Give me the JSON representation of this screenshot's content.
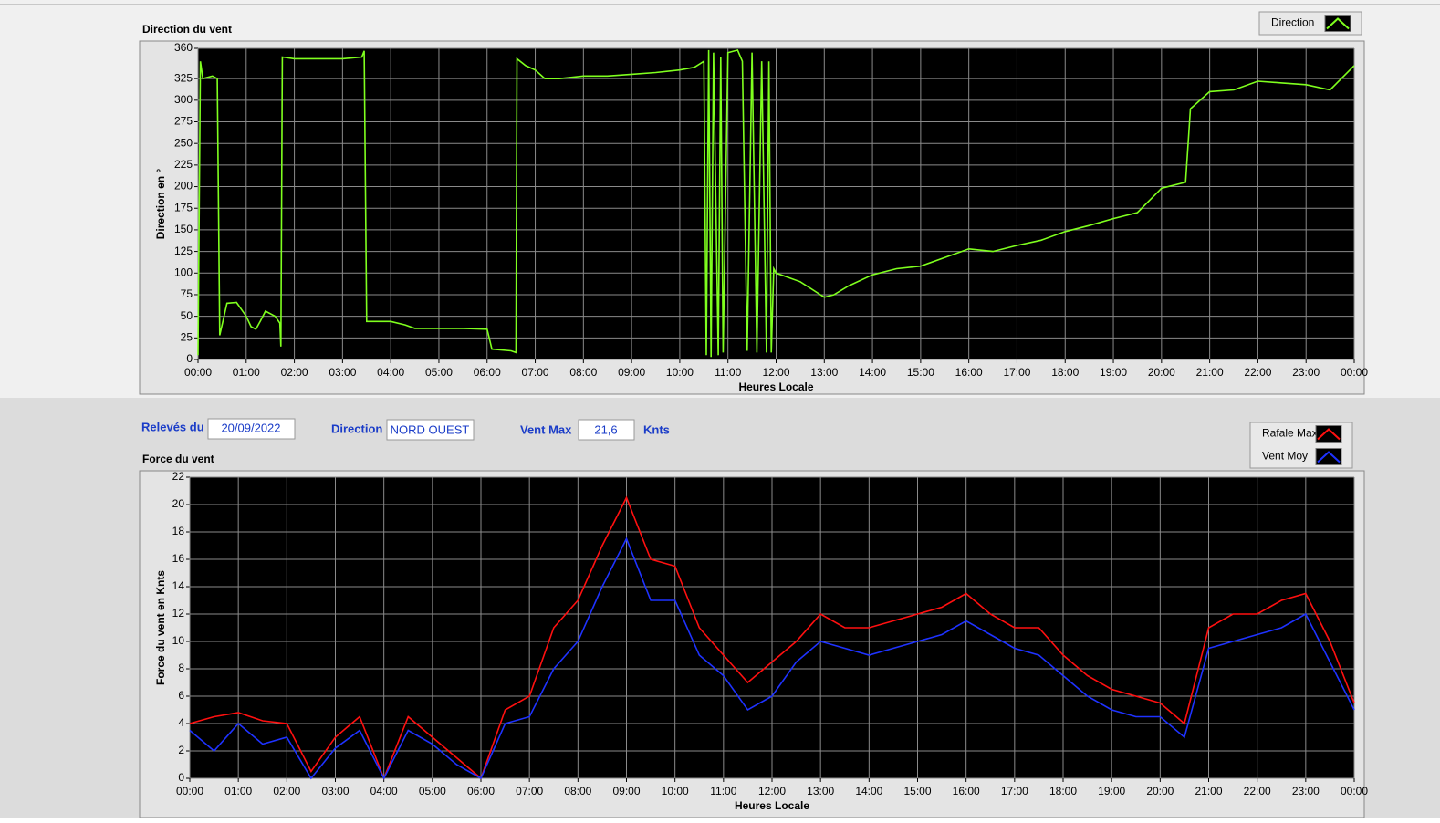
{
  "chart_data": [
    {
      "type": "line",
      "title": "Direction du vent",
      "ylabel": "Direction en °",
      "xlabel": "Heures Locale",
      "grid": true,
      "xlim": [
        0,
        24
      ],
      "ylim": [
        0,
        360
      ],
      "xticks": [
        {
          "value": 0,
          "label": "00:00"
        },
        {
          "value": 1,
          "label": "01:00"
        },
        {
          "value": 2,
          "label": "02:00"
        },
        {
          "value": 3,
          "label": "03:00"
        },
        {
          "value": 4,
          "label": "04:00"
        },
        {
          "value": 5,
          "label": "05:00"
        },
        {
          "value": 6,
          "label": "06:00"
        },
        {
          "value": 7,
          "label": "07:00"
        },
        {
          "value": 8,
          "label": "08:00"
        },
        {
          "value": 9,
          "label": "09:00"
        },
        {
          "value": 10,
          "label": "10:00"
        },
        {
          "value": 11,
          "label": "11:00"
        },
        {
          "value": 12,
          "label": "12:00"
        },
        {
          "value": 13,
          "label": "13:00"
        },
        {
          "value": 14,
          "label": "14:00"
        },
        {
          "value": 15,
          "label": "15:00"
        },
        {
          "value": 16,
          "label": "16:00"
        },
        {
          "value": 17,
          "label": "17:00"
        },
        {
          "value": 18,
          "label": "18:00"
        },
        {
          "value": 19,
          "label": "19:00"
        },
        {
          "value": 20,
          "label": "20:00"
        },
        {
          "value": 21,
          "label": "21:00"
        },
        {
          "value": 22,
          "label": "22:00"
        },
        {
          "value": 23,
          "label": "23:00"
        },
        {
          "value": 24,
          "label": "00:00"
        }
      ],
      "yticks": [
        0,
        25,
        50,
        75,
        100,
        125,
        150,
        175,
        200,
        225,
        250,
        275,
        300,
        325,
        360
      ],
      "x": [
        0,
        0.05,
        0.1,
        0.3,
        0.4,
        0.45,
        0.6,
        0.8,
        1.0,
        1.1,
        1.2,
        1.3,
        1.4,
        1.6,
        1.7,
        1.72,
        1.75,
        2.0,
        3.0,
        3.4,
        3.45,
        3.5,
        4.0,
        4.3,
        4.5,
        5.0,
        5.5,
        6.0,
        6.1,
        6.5,
        6.6,
        6.62,
        6.8,
        7.0,
        7.2,
        7.5,
        8.0,
        8.5,
        9.0,
        9.5,
        10.0,
        10.3,
        10.5,
        10.55,
        10.6,
        10.65,
        10.7,
        10.8,
        10.85,
        10.9,
        11.0,
        11.2,
        11.3,
        11.4,
        11.5,
        11.6,
        11.7,
        11.8,
        11.85,
        11.9,
        11.95,
        12.0,
        12.5,
        13.0,
        13.2,
        13.5,
        14.0,
        14.5,
        15.0,
        15.5,
        16.0,
        16.5,
        17.0,
        17.5,
        18.0,
        18.5,
        19.0,
        19.5,
        20.0,
        20.5,
        20.6,
        21.0,
        21.5,
        22.0,
        22.5,
        23.0,
        23.5,
        24.0
      ],
      "series": [
        {
          "name": "Direction",
          "color": "#7fff1e",
          "values": [
            5,
            345,
            325,
            328,
            325,
            28,
            65,
            66,
            50,
            38,
            35,
            45,
            56,
            50,
            42,
            15,
            350,
            348,
            348,
            350,
            357,
            44,
            44,
            40,
            36,
            36,
            36,
            35,
            12,
            10,
            8,
            348,
            340,
            335,
            325,
            325,
            328,
            328,
            330,
            332,
            335,
            338,
            345,
            5,
            358,
            3,
            355,
            5,
            350,
            8,
            355,
            358,
            345,
            10,
            355,
            8,
            345,
            8,
            345,
            8,
            105,
            100,
            90,
            72,
            75,
            85,
            98,
            105,
            108,
            118,
            128,
            125,
            132,
            138,
            148,
            155,
            163,
            170,
            198,
            205,
            290,
            310,
            312,
            322,
            320,
            318,
            312,
            340
          ]
        }
      ]
    },
    {
      "type": "line",
      "title": "Force du vent",
      "ylabel": "Force du vent en Knts",
      "xlabel": "Heures Locale",
      "grid": true,
      "xlim": [
        0,
        24
      ],
      "ylim": [
        0,
        22
      ],
      "xticks": [
        {
          "value": 0,
          "label": "00:00"
        },
        {
          "value": 1,
          "label": "01:00"
        },
        {
          "value": 2,
          "label": "02:00"
        },
        {
          "value": 3,
          "label": "03:00"
        },
        {
          "value": 4,
          "label": "04:00"
        },
        {
          "value": 5,
          "label": "05:00"
        },
        {
          "value": 6,
          "label": "06:00"
        },
        {
          "value": 7,
          "label": "07:00"
        },
        {
          "value": 8,
          "label": "08:00"
        },
        {
          "value": 9,
          "label": "09:00"
        },
        {
          "value": 10,
          "label": "10:00"
        },
        {
          "value": 11,
          "label": "11:00"
        },
        {
          "value": 12,
          "label": "12:00"
        },
        {
          "value": 13,
          "label": "13:00"
        },
        {
          "value": 14,
          "label": "14:00"
        },
        {
          "value": 15,
          "label": "15:00"
        },
        {
          "value": 16,
          "label": "16:00"
        },
        {
          "value": 17,
          "label": "17:00"
        },
        {
          "value": 18,
          "label": "18:00"
        },
        {
          "value": 19,
          "label": "19:00"
        },
        {
          "value": 20,
          "label": "20:00"
        },
        {
          "value": 21,
          "label": "21:00"
        },
        {
          "value": 22,
          "label": "22:00"
        },
        {
          "value": 23,
          "label": "23:00"
        },
        {
          "value": 24,
          "label": "00:00"
        }
      ],
      "yticks": [
        0,
        2,
        4,
        6,
        8,
        10,
        12,
        14,
        16,
        18,
        20,
        22
      ],
      "x": [
        0,
        0.5,
        1,
        1.5,
        2,
        2.5,
        3,
        3.5,
        4,
        4.5,
        5,
        5.5,
        6,
        6.5,
        7,
        7.5,
        8,
        8.5,
        9,
        9.5,
        10,
        10.5,
        11,
        11.5,
        12,
        12.5,
        13,
        13.5,
        14,
        14.5,
        15,
        15.5,
        16,
        16.5,
        17,
        17.5,
        18,
        18.5,
        19,
        19.5,
        20,
        20.5,
        21,
        21.5,
        22,
        22.5,
        23,
        23.5,
        24
      ],
      "series": [
        {
          "name": "Rafale Max",
          "color": "#ff1010",
          "values": [
            4,
            4.5,
            4.8,
            4.2,
            4,
            0.5,
            3,
            4.5,
            0,
            4.5,
            3,
            1.5,
            0,
            5,
            6,
            11,
            13,
            17,
            20.5,
            16,
            15.5,
            11,
            9,
            7,
            8.5,
            10,
            12,
            11,
            11,
            11.5,
            12,
            12.5,
            13.5,
            12,
            11,
            11,
            9,
            7.5,
            6.5,
            6,
            5.5,
            4,
            11,
            12,
            12,
            13,
            13.5,
            10,
            5.5
          ]
        },
        {
          "name": "Vent Moy",
          "color": "#1e32ff",
          "values": [
            3.5,
            2,
            4,
            2.5,
            3,
            0,
            2.2,
            3.5,
            0,
            3.5,
            2.5,
            1,
            0,
            4,
            4.5,
            8,
            10,
            14,
            17.5,
            13,
            13,
            9,
            7.5,
            5,
            6,
            8.5,
            10,
            9.5,
            9,
            9.5,
            10,
            10.5,
            11.5,
            10.5,
            9.5,
            9,
            7.5,
            6,
            5,
            4.5,
            4.5,
            3,
            9.5,
            10,
            10.5,
            11,
            12,
            8.5,
            5
          ]
        }
      ]
    }
  ],
  "fields": {
    "date_label": "Relevés du",
    "date": "20/09/2022",
    "direction_label": "Direction",
    "direction": "NORD OUEST",
    "max_label": "Vent Max",
    "max": "21,6",
    "max_unit": "Knts"
  }
}
